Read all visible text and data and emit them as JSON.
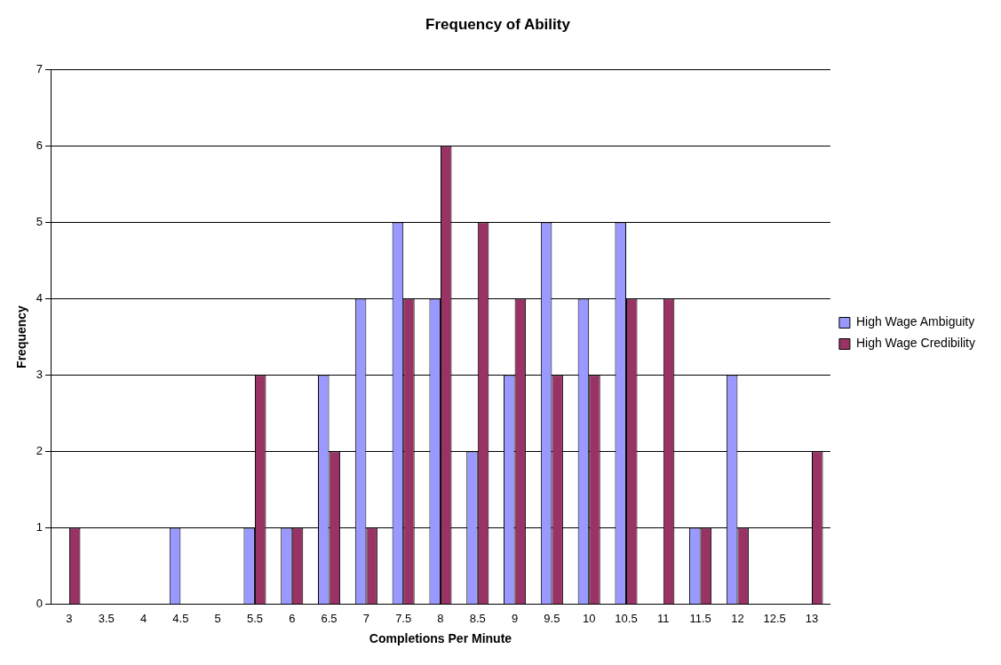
{
  "chart_data": {
    "type": "bar",
    "title": "Frequency of Ability",
    "xlabel": "Completions Per Minute",
    "ylabel": "Frequency",
    "categories": [
      "3",
      "3.5",
      "4",
      "4.5",
      "5",
      "5.5",
      "6",
      "6.5",
      "7",
      "7.5",
      "8",
      "8.5",
      "9",
      "9.5",
      "10",
      "10.5",
      "11",
      "11.5",
      "12",
      "12.5",
      "13"
    ],
    "series": [
      {
        "name": "High Wage Ambiguity",
        "color": "#9999ff",
        "values": [
          0,
          0,
          0,
          1,
          0,
          1,
          1,
          3,
          4,
          5,
          4,
          2,
          3,
          5,
          4,
          5,
          0,
          1,
          3,
          0,
          0
        ]
      },
      {
        "name": "High Wage Credibility",
        "color": "#993366",
        "values": [
          1,
          0,
          0,
          0,
          0,
          3,
          1,
          2,
          1,
          4,
          6,
          5,
          4,
          3,
          3,
          4,
          4,
          1,
          1,
          0,
          2
        ]
      }
    ],
    "ylim": [
      0,
      7
    ],
    "yticks": [
      0,
      1,
      2,
      3,
      4,
      5,
      6,
      7
    ],
    "grid": "y",
    "legend": "right"
  }
}
